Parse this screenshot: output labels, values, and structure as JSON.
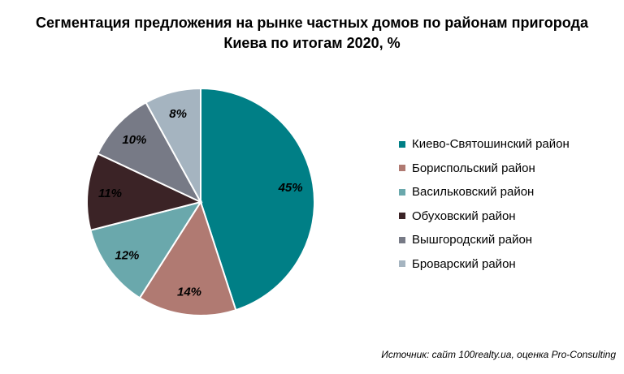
{
  "chart_data": {
    "type": "pie",
    "title_lines": [
      "Сегментация предложения на рынке частных домов по районам пригорода",
      "Киева по итогам 2020, %"
    ],
    "legend_position": "right",
    "categories": [
      "Киево-Святошинский район",
      "Бориспольский район",
      "Васильковский район",
      "Обуховский район",
      "Вышгородский район",
      "Броварский район"
    ],
    "values": [
      45,
      14,
      12,
      11,
      10,
      8
    ],
    "value_labels": [
      "45%",
      "14%",
      "12%",
      "11%",
      "10%",
      "8%"
    ],
    "colors": [
      "#007f86",
      "#b07a72",
      "#6aa8ac",
      "#3b2326",
      "#777a86",
      "#a5b4c0"
    ]
  },
  "source": "Источник: сайт 100realty.ua, оценка Pro-Consulting"
}
